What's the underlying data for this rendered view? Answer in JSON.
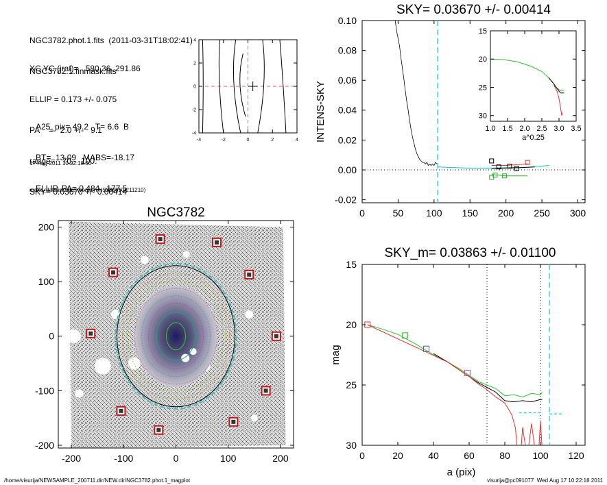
{
  "header": {
    "line1": "NGC3782.phot.1.fits  (2011-03-31T18:02:41)",
    "line2": "NGC3782.1.finmask.fits",
    "xcyc": "XC,YC (iraf)=   580.36, 291.86",
    "ellip": "ELLIP = 0.173 +/- 0.075",
    "pa": "PA    =   2.0 +/-   9.1",
    "range": "range=   70.-  100.",
    "sky": "SKY= 0.03670 +/- 0.00414",
    "a25": "A25_pix= 49.2   T= 6.6  B",
    "bt": "BT=  13.09   MABS=-18.17",
    "ellippa": "ELLIP, PA= 0.484   177.5",
    "date": "17-Aug-2011 10:22:18.00",
    "prog": "make_datalist0.pro (version HS230610/211210)"
  },
  "footer": {
    "left": "/home/visurija/NEWSAMPLE_200711.dir/NEW.dir/NGC3782.phot.1_magplot",
    "right": "visurija@pc091077  Wed Aug 17 10:22:18 2011"
  },
  "chart_data": [
    {
      "type": "line",
      "title": "",
      "xlim": [
        -4,
        4
      ],
      "ylim": [
        -4,
        4
      ],
      "xticks": [
        "-4",
        "-2",
        "0",
        "2",
        "4"
      ],
      "yticks": [
        "-4",
        "-2",
        "0",
        "2",
        "4"
      ],
      "center": [
        0.4,
        0
      ],
      "contours": [
        [
          [
            -3.7,
            4
          ],
          [
            -3.6,
            0.5
          ],
          [
            -3.7,
            -4
          ]
        ],
        [
          [
            -2.3,
            4
          ],
          [
            -2.5,
            0.5
          ],
          [
            -2.0,
            -4
          ]
        ],
        [
          [
            -1.0,
            4
          ],
          [
            -1.5,
            0.5
          ],
          [
            -0.6,
            -4
          ]
        ],
        [
          [
            -0.4,
            2.8
          ],
          [
            -1.0,
            0.3
          ],
          [
            -0.2,
            -2.6
          ]
        ],
        [
          [
            1.2,
            4
          ],
          [
            1.6,
            0.5
          ],
          [
            0.8,
            -4
          ]
        ],
        [
          [
            2.6,
            4
          ],
          [
            2.9,
            0
          ],
          [
            3.1,
            -4
          ]
        ]
      ]
    },
    {
      "type": "line",
      "title": "SKY= 0.03670 +/- 0.00414",
      "xlabel": "",
      "ylabel": "INTENS-SKY",
      "xlim": [
        0,
        310
      ],
      "ylim": [
        -0.022,
        0.1
      ],
      "xticks": [
        "0",
        "50",
        "100",
        "150",
        "200",
        "250",
        "300"
      ],
      "yticks": [
        "-0.02",
        "0.00",
        "0.02",
        "0.04",
        "0.06",
        "0.08",
        "0.10"
      ],
      "vline": 105,
      "profile": [
        [
          44,
          0.11
        ],
        [
          46,
          0.1
        ],
        [
          48,
          0.093
        ],
        [
          50,
          0.088
        ],
        [
          52,
          0.083
        ],
        [
          54,
          0.075
        ],
        [
          56,
          0.068
        ],
        [
          58,
          0.061
        ],
        [
          60,
          0.053
        ],
        [
          62,
          0.046
        ],
        [
          64,
          0.04
        ],
        [
          66,
          0.033
        ],
        [
          68,
          0.027
        ],
        [
          70,
          0.022
        ],
        [
          72,
          0.018
        ],
        [
          74,
          0.014
        ],
        [
          76,
          0.011
        ],
        [
          78,
          0.009
        ],
        [
          80,
          0.007
        ],
        [
          82,
          0.006
        ],
        [
          84,
          0.005
        ],
        [
          86,
          0.005
        ],
        [
          88,
          0.004
        ],
        [
          90,
          0.005
        ],
        [
          92,
          0.003
        ],
        [
          94,
          0.004
        ],
        [
          96,
          0.003
        ],
        [
          98,
          0.004
        ],
        [
          100,
          0.003
        ],
        [
          102,
          0.005
        ],
        [
          104,
          0.004
        ]
      ],
      "sky_series": [
        {
          "color": "#00c8c8",
          "points": [
            [
              105,
              0.002
            ],
            [
              130,
              0.0015
            ],
            [
              160,
              0.001
            ],
            [
              200,
              0.0015
            ],
            [
              230,
              0.0018
            ],
            [
              260,
              0.003
            ]
          ]
        },
        {
          "color": "#000000",
          "points": [
            [
              180,
              0.001
            ],
            [
              200,
              0.0012
            ],
            [
              220,
              0.0015
            ],
            [
              240,
              0.002
            ]
          ]
        },
        {
          "color": "#e83030",
          "points": [
            [
              180,
              0.003
            ],
            [
              200,
              0.003
            ],
            [
              230,
              0.004
            ]
          ]
        },
        {
          "color": "#30a830",
          "points": [
            [
              180,
              -0.003
            ],
            [
              200,
              -0.004
            ],
            [
              230,
              -0.004
            ]
          ]
        }
      ],
      "markers": [
        {
          "x": 180,
          "y": 0.006,
          "color": "#000000"
        },
        {
          "x": 190,
          "y": 0.002,
          "color": "#000000"
        },
        {
          "x": 205,
          "y": 0.0025,
          "color": "#000000"
        },
        {
          "x": 215,
          "y": 0.001,
          "color": "#000000"
        },
        {
          "x": 230,
          "y": 0.005,
          "color": "#e83030"
        },
        {
          "x": 185,
          "y": -0.0035,
          "color": "#30a830"
        },
        {
          "x": 198,
          "y": -0.004,
          "color": "#30a830"
        },
        {
          "x": 180,
          "y": -0.005,
          "color": "#30a830"
        }
      ]
    },
    {
      "type": "line",
      "title": "",
      "xlabel": "a^0.25",
      "ylabel": "",
      "xlim": [
        1.0,
        3.5
      ],
      "ylim": [
        31,
        15
      ],
      "xticks": [
        "1.0",
        "1.5",
        "2.0",
        "2.5",
        "3.0",
        "3.5"
      ],
      "yticks": [
        "15",
        "20",
        "25",
        "30"
      ],
      "series": [
        {
          "color": "#30c030",
          "points": [
            [
              1.0,
              20.0
            ],
            [
              1.4,
              20.1
            ],
            [
              1.8,
              20.5
            ],
            [
              2.2,
              21.3
            ],
            [
              2.5,
              22.2
            ],
            [
              2.7,
              23.3
            ],
            [
              2.85,
              24.4
            ],
            [
              2.95,
              25.2
            ],
            [
              3.05,
              25.6
            ],
            [
              3.15,
              25.5
            ]
          ]
        },
        {
          "color": "#000000",
          "points": [
            [
              2.7,
              23.3
            ],
            [
              2.85,
              24.4
            ],
            [
              2.95,
              25.3
            ],
            [
              3.05,
              26.0
            ],
            [
              3.15,
              26.0
            ]
          ]
        },
        {
          "color": "#e83030",
          "points": [
            [
              2.85,
              24.6
            ],
            [
              2.95,
              25.8
            ],
            [
              3.0,
              27.0
            ],
            [
              3.05,
              28.8
            ],
            [
              3.08,
              30.0
            ],
            [
              3.1,
              29.5
            ]
          ]
        }
      ]
    },
    {
      "type": "line",
      "title": "SKY_m=  0.03863 +/- 0.01100",
      "xlabel": "a (pix)",
      "ylabel": "mag",
      "xlim": [
        0,
        125
      ],
      "ylim": [
        30,
        15
      ],
      "xticks": [
        "0",
        "20",
        "40",
        "60",
        "80",
        "100",
        "120"
      ],
      "yticks": [
        "15",
        "20",
        "25",
        "30"
      ],
      "vlines_dotted": [
        70,
        100
      ],
      "vline_cyan": 105,
      "sky_level": {
        "x0": 88,
        "x1": 100,
        "y": 27.3
      },
      "sky_level2": {
        "x0": 105,
        "x1": 112,
        "y": 27.4
      },
      "series": [
        {
          "color": "#30c030",
          "points": [
            [
              3,
              20.0
            ],
            [
              10,
              20.3
            ],
            [
              20,
              20.8
            ],
            [
              30,
              21.6
            ],
            [
              40,
              22.5
            ],
            [
              48,
              23.1
            ],
            [
              55,
              23.7
            ],
            [
              60,
              24.2
            ],
            [
              65,
              24.7
            ],
            [
              70,
              25.0
            ],
            [
              75,
              25.3
            ],
            [
              80,
              25.9
            ],
            [
              85,
              25.8
            ],
            [
              90,
              26.0
            ],
            [
              95,
              25.7
            ],
            [
              100,
              25.8
            ],
            [
              101,
              25.6
            ]
          ]
        },
        {
          "color": "#000000",
          "points": [
            [
              40,
              22.4
            ],
            [
              48,
              23.1
            ],
            [
              55,
              23.8
            ],
            [
              60,
              24.3
            ],
            [
              65,
              24.8
            ],
            [
              70,
              25.2
            ],
            [
              75,
              25.6
            ],
            [
              80,
              26.3
            ],
            [
              85,
              26.4
            ],
            [
              90,
              26.3
            ],
            [
              95,
              26.4
            ],
            [
              100,
              26.2
            ],
            [
              101,
              26.2
            ]
          ]
        },
        {
          "color": "#e83030",
          "points": [
            [
              3,
              20.0
            ],
            [
              48,
              23.1
            ],
            [
              60,
              24.3
            ],
            [
              65,
              24.9
            ],
            [
              70,
              25.4
            ],
            [
              75,
              26.0
            ],
            [
              80,
              26.5
            ],
            [
              84,
              27.5
            ],
            [
              86,
              28.6
            ],
            [
              87,
              30.5
            ],
            [
              89,
              30.5
            ],
            [
              90,
              28.5
            ],
            [
              92,
              30.5
            ],
            [
              93,
              30.5
            ],
            [
              95,
              28.2
            ],
            [
              97,
              30.5
            ],
            [
              99,
              30.5
            ],
            [
              100,
              28.0
            ],
            [
              101,
              30.5
            ]
          ]
        }
      ],
      "markers": [
        {
          "x": 3,
          "y": 20.0,
          "color": "#e83030"
        },
        {
          "x": 24,
          "y": 20.9,
          "color": "#30c030"
        },
        {
          "x": 36,
          "y": 22.0,
          "color": "#3050d0"
        },
        {
          "x": 59,
          "y": 24.0,
          "color": "#c040c0"
        }
      ]
    },
    {
      "type": "scatter",
      "title": "NGC3782",
      "xlim": [
        -225,
        225
      ],
      "ylim": [
        -205,
        212
      ],
      "xticks": [
        "-200",
        "-100",
        "0",
        "100",
        "200"
      ],
      "yticks": [
        "-200",
        "-100",
        "0",
        "100",
        "200"
      ],
      "stars": [
        [
          -30,
          178
        ],
        [
          78,
          172
        ],
        [
          -120,
          117
        ],
        [
          140,
          113
        ],
        [
          -163,
          5
        ],
        [
          192,
          0
        ],
        [
          172,
          -100
        ],
        [
          -105,
          -137
        ],
        [
          110,
          -157
        ],
        [
          -33,
          -172
        ]
      ],
      "ellipses": [
        {
          "rx": 86,
          "ry": 103,
          "color": "#000000",
          "dash": ""
        },
        {
          "rx": 88,
          "ry": 106,
          "color": "#40c0c0",
          "dash": "6,4"
        },
        {
          "rx": 78,
          "ry": 92,
          "color": "#c0a040",
          "dash": "2,2"
        },
        {
          "rx": 70,
          "ry": 82,
          "color": "#a0c040",
          "dash": "2,2"
        },
        {
          "rx": 60,
          "ry": 70,
          "color": "#c070a0",
          "dash": "2,2"
        },
        {
          "rx": 50,
          "ry": 59,
          "color": "#8080c0",
          "dash": "2,2"
        },
        {
          "rx": 40,
          "ry": 48,
          "color": "#c040c0",
          "dash": "2,2"
        },
        {
          "rx": 28,
          "ry": 35,
          "color": "#20a090",
          "dash": ""
        },
        {
          "rx": 14,
          "ry": 20,
          "color": "#40c040",
          "dash": ""
        },
        {
          "rx": 4,
          "ry": 6,
          "color": "#2020a0",
          "dash": ""
        }
      ]
    }
  ]
}
